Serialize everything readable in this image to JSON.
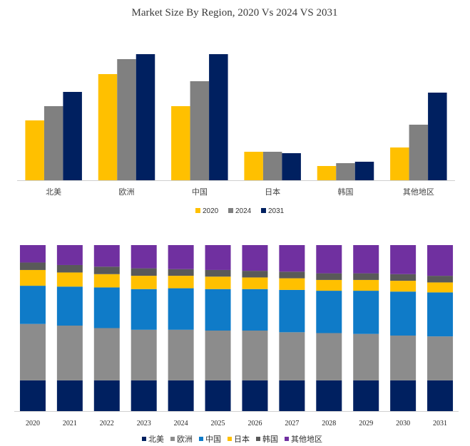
{
  "chart_data": [
    {
      "type": "bar",
      "title": "Market Size By Region, 2020 Vs 2024 VS 2031",
      "categories": [
        "北美",
        "欧洲",
        "中国",
        "日本",
        "韩国",
        "其他地区"
      ],
      "series": [
        {
          "name": "2020",
          "color": "#FFC000",
          "values": [
            84,
            149,
            104,
            40,
            20,
            46
          ]
        },
        {
          "name": "2024",
          "color": "#808080",
          "values": [
            104,
            170,
            139,
            40,
            24,
            78
          ]
        },
        {
          "name": "2031",
          "color": "#002060",
          "values": [
            124,
            177,
            177,
            38,
            26,
            123
          ]
        }
      ],
      "ylim": [
        0,
        200
      ],
      "legend": "bottom",
      "grid": false
    },
    {
      "type": "bar",
      "stacked": true,
      "normalized": true,
      "categories": [
        "2020",
        "2021",
        "2022",
        "2023",
        "2024",
        "2025",
        "2026",
        "2027",
        "2028",
        "2029",
        "2030",
        "2031"
      ],
      "series": [
        {
          "name": "北美",
          "color": "#002060",
          "values": [
            18.5,
            18.5,
            18.5,
            18.5,
            18.5,
            18.5,
            18.5,
            18.5,
            18.5,
            18.5,
            18.5,
            18.5
          ]
        },
        {
          "name": "欧洲",
          "color": "#8C8C8C",
          "values": [
            34.0,
            33.0,
            31.5,
            30.5,
            30.5,
            30.0,
            30.0,
            29.0,
            28.5,
            28.0,
            27.0,
            26.5
          ]
        },
        {
          "name": "中国",
          "color": "#0F7BC8",
          "values": [
            23.0,
            23.5,
            24.5,
            24.5,
            25.0,
            25.0,
            25.0,
            25.5,
            25.5,
            26.0,
            26.5,
            26.5
          ]
        },
        {
          "name": "日本",
          "color": "#FFC000",
          "values": [
            9.5,
            8.5,
            8.0,
            8.0,
            7.5,
            7.5,
            7.0,
            7.0,
            6.5,
            6.5,
            6.5,
            6.0
          ]
        },
        {
          "name": "韩国",
          "color": "#595959",
          "values": [
            4.5,
            4.5,
            4.5,
            4.5,
            4.0,
            4.0,
            4.0,
            4.0,
            4.0,
            4.0,
            4.0,
            4.0
          ]
        },
        {
          "name": "其他地区",
          "color": "#7030A0",
          "values": [
            10.5,
            12.0,
            13.0,
            14.0,
            14.5,
            15.0,
            15.5,
            16.0,
            17.0,
            17.0,
            17.5,
            18.5
          ]
        }
      ],
      "ylim": [
        0,
        100
      ],
      "legend": "bottom",
      "grid": false
    }
  ]
}
